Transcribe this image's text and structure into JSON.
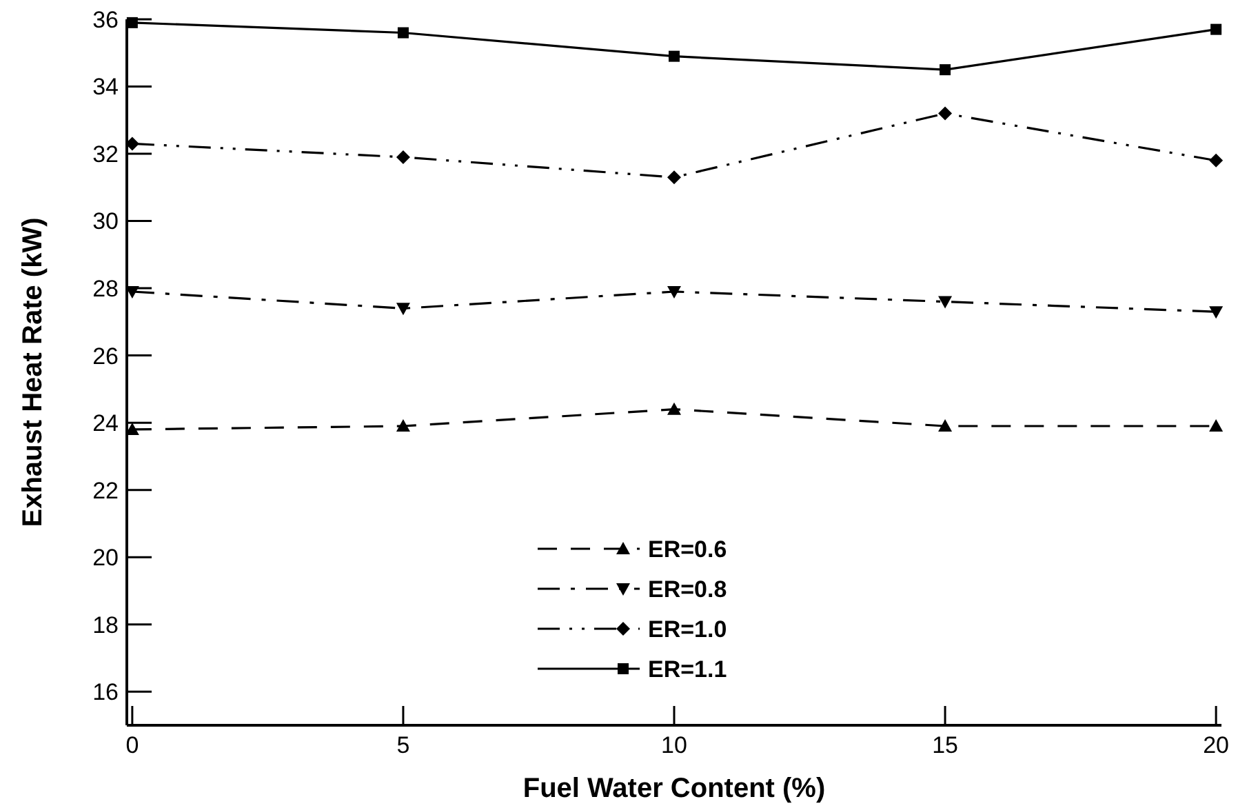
{
  "chart_data": {
    "type": "line",
    "xlabel": "Fuel Water Content (%)",
    "ylabel": "Exhaust Heat Rate (kW)",
    "x": [
      0,
      5,
      10,
      15,
      20
    ],
    "xlim": [
      -0.1,
      20.1
    ],
    "xticks": [
      0,
      5,
      10,
      15,
      20
    ],
    "ylim": [
      15,
      36
    ],
    "yticks": [
      16,
      18,
      20,
      22,
      24,
      26,
      28,
      30,
      32,
      34,
      36
    ],
    "grid": false,
    "legend": "bottom",
    "series": [
      {
        "name": "ER=0.6",
        "color": "#000000",
        "marker": "triangle",
        "line_style": "dashed",
        "values": [
          23.8,
          23.9,
          24.4,
          23.9,
          23.9
        ]
      },
      {
        "name": "ER=0.8",
        "color": "#000000",
        "marker": "triangle-down",
        "line_style": "dashdot",
        "values": [
          27.9,
          27.4,
          27.9,
          27.6,
          27.3
        ]
      },
      {
        "name": "ER=1.0",
        "color": "#000000",
        "marker": "diamond",
        "line_style": "dashdotdot",
        "values": [
          32.3,
          31.9,
          31.3,
          33.2,
          31.8
        ]
      },
      {
        "name": "ER=1.1",
        "color": "#000000",
        "marker": "square",
        "line_style": "solid",
        "values": [
          35.9,
          35.6,
          34.9,
          34.5,
          35.7
        ]
      }
    ]
  }
}
